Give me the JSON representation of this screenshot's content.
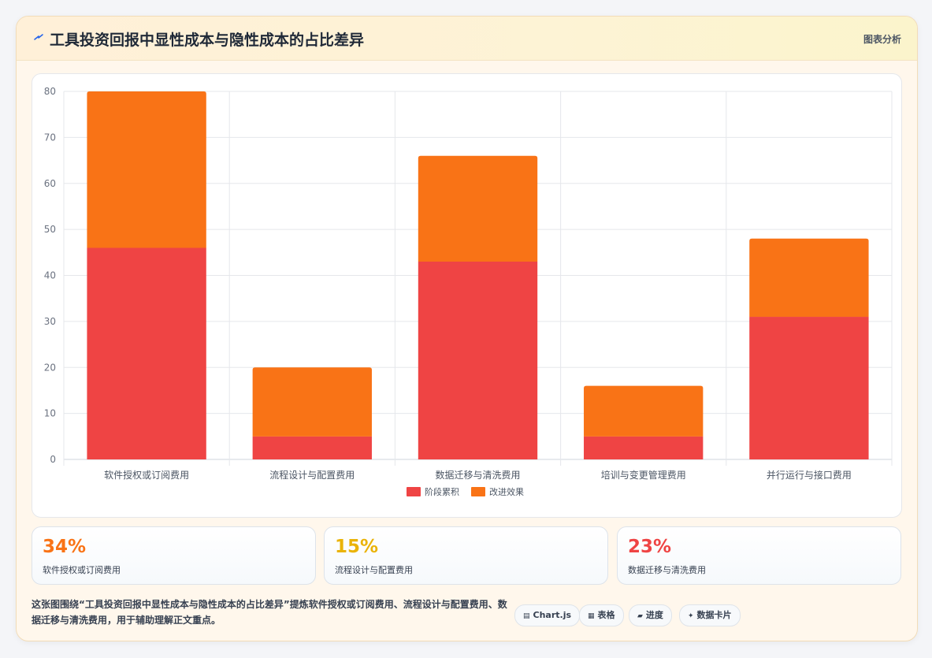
{
  "header": {
    "title": "工具投资回报中显性成本与隐性成本的占比差异",
    "analysis_label": "图表分析"
  },
  "chart_data": {
    "type": "bar",
    "stacked": true,
    "categories": [
      "软件授权或订阅费用",
      "流程设计与配置费用",
      "数据迁移与清洗费用",
      "培训与变更管理费用",
      "并行运行与接口费用"
    ],
    "series": [
      {
        "name": "阶段累积",
        "values": [
          46,
          5,
          43,
          5,
          31
        ],
        "color": "#ef4444"
      },
      {
        "name": "改进效果",
        "values": [
          34,
          15,
          23,
          11,
          17
        ],
        "color": "#f97316"
      }
    ],
    "ylim": [
      0,
      80
    ],
    "yticks": [
      0,
      10,
      20,
      30,
      40,
      50,
      60,
      70,
      80
    ],
    "legend": "bottom",
    "grid": true
  },
  "stats": [
    {
      "value": "34%",
      "label": "软件授权或订阅费用",
      "color": "#f97316"
    },
    {
      "value": "15%",
      "label": "流程设计与配置费用",
      "color": "#eab308"
    },
    {
      "value": "23%",
      "label": "数据迁移与清洗费用",
      "color": "#ef4444"
    }
  ],
  "description": "这张图围绕“工具投资回报中显性成本与隐性成本的占比差异”提炼软件授权或订阅费用、流程设计与配置费用、数据迁移与清洗费用，用于辅助理解正文重点。",
  "tags": [
    {
      "icon": "▤",
      "label": "Chart.js"
    },
    {
      "icon": "▦",
      "label": "表格"
    },
    {
      "icon": "▰",
      "label": "进度"
    },
    {
      "icon": "✦",
      "label": "数据卡片"
    }
  ]
}
